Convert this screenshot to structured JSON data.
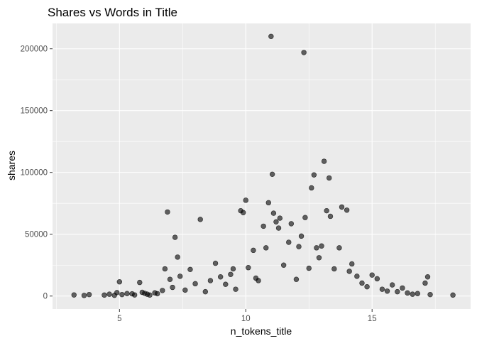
{
  "chart_data": {
    "type": "scatter",
    "title": "Shares vs Words in Title",
    "xlabel": "n_tokens_title",
    "ylabel": "shares",
    "xlim": [
      2.35,
      18.9
    ],
    "ylim": [
      -10500,
      220500
    ],
    "x_ticks": [
      5,
      10,
      15
    ],
    "x_tick_labels": [
      "5",
      "10",
      "15"
    ],
    "y_ticks": [
      0,
      50000,
      100000,
      150000,
      200000
    ],
    "y_tick_labels": [
      "0",
      "50000",
      "100000",
      "150000",
      "200000"
    ],
    "grid": true,
    "legend": "none",
    "colors": {
      "panel_background": "#ebebeb",
      "grid_major": "#ffffff",
      "point": "#000000",
      "tick_label": "#4d4d4d"
    },
    "point_alpha": 0.6,
    "points": [
      [
        3.2,
        900
      ],
      [
        3.6,
        500
      ],
      [
        3.8,
        1200
      ],
      [
        4.4,
        800
      ],
      [
        4.6,
        1500
      ],
      [
        4.8,
        600
      ],
      [
        4.9,
        2800
      ],
      [
        5.0,
        11500
      ],
      [
        5.1,
        1200
      ],
      [
        5.3,
        2000
      ],
      [
        5.5,
        1800
      ],
      [
        5.6,
        900
      ],
      [
        5.8,
        11000
      ],
      [
        5.9,
        3000
      ],
      [
        6.0,
        2200
      ],
      [
        6.1,
        1500
      ],
      [
        6.2,
        800
      ],
      [
        6.4,
        2600
      ],
      [
        6.5,
        1900
      ],
      [
        6.7,
        4500
      ],
      [
        6.8,
        22000
      ],
      [
        6.9,
        68000
      ],
      [
        7.0,
        13500
      ],
      [
        7.1,
        7000
      ],
      [
        7.2,
        47500
      ],
      [
        7.3,
        31500
      ],
      [
        7.4,
        16000
      ],
      [
        7.6,
        4800
      ],
      [
        7.8,
        21500
      ],
      [
        8.0,
        10000
      ],
      [
        8.2,
        62000
      ],
      [
        8.4,
        3500
      ],
      [
        8.6,
        12500
      ],
      [
        8.8,
        26500
      ],
      [
        9.0,
        15500
      ],
      [
        9.2,
        9500
      ],
      [
        9.4,
        17500
      ],
      [
        9.5,
        22000
      ],
      [
        9.6,
        5500
      ],
      [
        9.8,
        69000
      ],
      [
        9.9,
        67500
      ],
      [
        10.0,
        77500
      ],
      [
        10.1,
        23000
      ],
      [
        10.3,
        37000
      ],
      [
        10.4,
        14500
      ],
      [
        10.5,
        12500
      ],
      [
        10.7,
        56500
      ],
      [
        10.8,
        39000
      ],
      [
        10.9,
        75500
      ],
      [
        11.0,
        210000
      ],
      [
        11.05,
        98500
      ],
      [
        11.1,
        67000
      ],
      [
        11.2,
        60000
      ],
      [
        11.3,
        55000
      ],
      [
        11.35,
        63000
      ],
      [
        11.5,
        25000
      ],
      [
        11.7,
        43500
      ],
      [
        11.8,
        58500
      ],
      [
        12.0,
        13500
      ],
      [
        12.1,
        40000
      ],
      [
        12.2,
        48500
      ],
      [
        12.3,
        197000
      ],
      [
        12.35,
        63500
      ],
      [
        12.5,
        22500
      ],
      [
        12.6,
        87500
      ],
      [
        12.7,
        98000
      ],
      [
        12.8,
        39000
      ],
      [
        12.9,
        31000
      ],
      [
        13.0,
        40500
      ],
      [
        13.1,
        109000
      ],
      [
        13.2,
        69000
      ],
      [
        13.3,
        95500
      ],
      [
        13.35,
        64500
      ],
      [
        13.5,
        22000
      ],
      [
        13.7,
        39000
      ],
      [
        13.8,
        72000
      ],
      [
        14.0,
        69500
      ],
      [
        14.1,
        20000
      ],
      [
        14.2,
        26000
      ],
      [
        14.4,
        16000
      ],
      [
        14.6,
        10500
      ],
      [
        14.8,
        7500
      ],
      [
        15.0,
        17000
      ],
      [
        15.2,
        14000
      ],
      [
        15.4,
        5500
      ],
      [
        15.6,
        4000
      ],
      [
        15.8,
        9000
      ],
      [
        16.0,
        3500
      ],
      [
        16.2,
        6500
      ],
      [
        16.4,
        2500
      ],
      [
        16.6,
        1500
      ],
      [
        16.8,
        2000
      ],
      [
        17.1,
        10500
      ],
      [
        17.2,
        15500
      ],
      [
        17.3,
        1200
      ],
      [
        18.2,
        800
      ]
    ]
  }
}
